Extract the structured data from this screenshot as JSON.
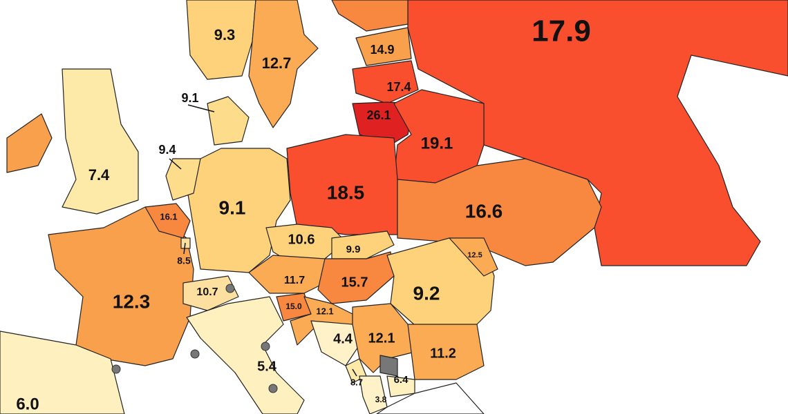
{
  "regions": [
    {
      "label": "17.9",
      "color": "#f94f2f"
    },
    {
      "label": "9.3",
      "color": "#fdd27a"
    },
    {
      "label": "12.7",
      "color": "#fbab54"
    },
    {
      "label": "14.9",
      "color": "#f9a04c"
    },
    {
      "label": "17.4",
      "color": "#f94f2f"
    },
    {
      "label": "26.1",
      "color": "#e02121"
    },
    {
      "label": "19.1",
      "color": "#f94f2f"
    },
    {
      "label": "9.1",
      "color": "#fddc8c"
    },
    {
      "label": "7.4",
      "color": "#fde9a8"
    },
    {
      "label": "9.4",
      "color": "#fddc8c"
    },
    {
      "label": "9.1",
      "color": "#fdd27a"
    },
    {
      "label": "18.5",
      "color": "#f94f2f"
    },
    {
      "label": "16.6",
      "color": "#f8883f"
    },
    {
      "label": "16.1",
      "color": "#f8883f"
    },
    {
      "label": "8.5",
      "color": "#fde0a0"
    },
    {
      "label": "10.6",
      "color": "#fdd27a"
    },
    {
      "label": "9.9",
      "color": "#fdd27a"
    },
    {
      "label": "12.5",
      "color": "#fbab54"
    },
    {
      "label": "12.3",
      "color": "#f9a04c"
    },
    {
      "label": "11.7",
      "color": "#fbab54"
    },
    {
      "label": "15.7",
      "color": "#f8883f"
    },
    {
      "label": "9.2",
      "color": "#fdd27a"
    },
    {
      "label": "10.7",
      "color": "#fde0a0"
    },
    {
      "label": "15.0",
      "color": "#f8883f"
    },
    {
      "label": "12.1",
      "color": "#fbab54"
    },
    {
      "label": "4.4",
      "color": "#fff2c8"
    },
    {
      "label": "12.1",
      "color": "#fbab54"
    },
    {
      "label": "11.2",
      "color": "#fbab54"
    },
    {
      "label": "5.4",
      "color": "#fff0c0"
    },
    {
      "label": "8.7",
      "color": "#fde9a8"
    },
    {
      "label": "6.4",
      "color": "#fff0c0"
    },
    {
      "label": "3.8",
      "color": "#fff2c8"
    },
    {
      "label": "6.0",
      "color": "#fff0c0"
    }
  ]
}
